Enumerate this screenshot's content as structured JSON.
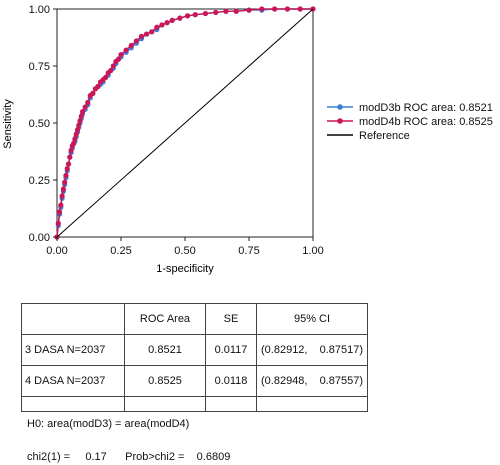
{
  "chart_data": {
    "type": "line",
    "xlabel": "1-specificity",
    "ylabel": "Sensitivity",
    "xlim": [
      0,
      1
    ],
    "ylim": [
      0,
      1
    ],
    "xticks": [
      "0.00",
      "0.25",
      "0.50",
      "0.75",
      "1.00"
    ],
    "yticks": [
      "0.00",
      "0.25",
      "0.50",
      "0.75",
      "1.00"
    ],
    "legend_position": "right",
    "series": [
      {
        "name": "modD3b ROC area: 0.8521",
        "color": "#3b7fd9",
        "marker": "circle",
        "x": [
          0,
          0.005,
          0.01,
          0.015,
          0.02,
          0.025,
          0.03,
          0.035,
          0.04,
          0.045,
          0.05,
          0.055,
          0.06,
          0.065,
          0.07,
          0.075,
          0.08,
          0.085,
          0.09,
          0.095,
          0.1,
          0.11,
          0.12,
          0.13,
          0.14,
          0.15,
          0.16,
          0.17,
          0.18,
          0.19,
          0.2,
          0.21,
          0.22,
          0.23,
          0.24,
          0.25,
          0.27,
          0.29,
          0.31,
          0.33,
          0.35,
          0.37,
          0.39,
          0.41,
          0.43,
          0.45,
          0.48,
          0.51,
          0.54,
          0.58,
          0.62,
          0.66,
          0.7,
          0.75,
          0.8,
          0.85,
          0.9,
          0.95,
          1
        ],
        "y": [
          0,
          0.05,
          0.1,
          0.13,
          0.17,
          0.2,
          0.23,
          0.26,
          0.29,
          0.32,
          0.35,
          0.37,
          0.39,
          0.41,
          0.42,
          0.44,
          0.46,
          0.48,
          0.5,
          0.52,
          0.54,
          0.56,
          0.58,
          0.61,
          0.63,
          0.65,
          0.66,
          0.67,
          0.68,
          0.7,
          0.71,
          0.73,
          0.74,
          0.76,
          0.78,
          0.79,
          0.81,
          0.83,
          0.85,
          0.87,
          0.89,
          0.9,
          0.91,
          0.93,
          0.94,
          0.95,
          0.96,
          0.97,
          0.975,
          0.98,
          0.985,
          0.99,
          0.99,
          0.995,
          0.995,
          1,
          1,
          1,
          1
        ]
      },
      {
        "name": "modD4b ROC area: 0.8525",
        "color": "#cc1655",
        "marker": "circle",
        "x": [
          0,
          0.005,
          0.01,
          0.015,
          0.02,
          0.025,
          0.03,
          0.035,
          0.04,
          0.045,
          0.05,
          0.055,
          0.06,
          0.065,
          0.07,
          0.075,
          0.08,
          0.085,
          0.09,
          0.095,
          0.1,
          0.11,
          0.12,
          0.13,
          0.14,
          0.15,
          0.16,
          0.17,
          0.18,
          0.19,
          0.2,
          0.21,
          0.22,
          0.23,
          0.24,
          0.25,
          0.27,
          0.29,
          0.31,
          0.33,
          0.35,
          0.37,
          0.39,
          0.41,
          0.43,
          0.45,
          0.48,
          0.51,
          0.54,
          0.58,
          0.62,
          0.66,
          0.7,
          0.75,
          0.8,
          0.85,
          0.9,
          0.95,
          1
        ],
        "y": [
          0,
          0.06,
          0.11,
          0.14,
          0.18,
          0.21,
          0.24,
          0.27,
          0.3,
          0.32,
          0.35,
          0.38,
          0.4,
          0.41,
          0.43,
          0.45,
          0.47,
          0.49,
          0.51,
          0.53,
          0.55,
          0.57,
          0.59,
          0.62,
          0.63,
          0.65,
          0.66,
          0.68,
          0.69,
          0.7,
          0.72,
          0.73,
          0.75,
          0.77,
          0.78,
          0.8,
          0.82,
          0.84,
          0.86,
          0.88,
          0.89,
          0.9,
          0.92,
          0.93,
          0.94,
          0.95,
          0.96,
          0.97,
          0.975,
          0.98,
          0.985,
          0.99,
          0.99,
          0.995,
          1,
          1,
          1,
          1,
          1
        ]
      },
      {
        "name": "Reference",
        "color": "#000000",
        "marker": "none",
        "x": [
          0,
          1
        ],
        "y": [
          0,
          1
        ]
      }
    ]
  },
  "table": {
    "headers": [
      "",
      "ROC Area",
      "SE",
      "95% CI"
    ],
    "rows": [
      {
        "label": "3 DASA  N=2037",
        "area": "0.8521",
        "se": "0.0117",
        "ci_low": "(0.82912,",
        "ci_high": "0.87517)"
      },
      {
        "label": "4 DASA  N=2037",
        "area": "0.8525",
        "se": "0.0118",
        "ci_low": "(0.82948,",
        "ci_high": "0.87557)"
      }
    ]
  },
  "notes": {
    "h0": "H0: area(modD3) = area(modD4)",
    "chi2": "chi2(1) =     0.17      Prob>chi2 =    0.6809"
  }
}
